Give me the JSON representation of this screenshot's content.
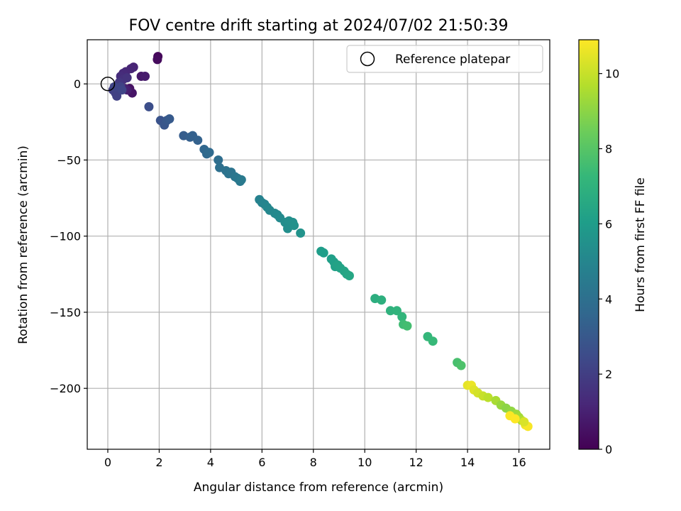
{
  "chart_data": {
    "type": "scatter",
    "title": "FOV centre drift starting at 2024/07/02 21:50:39",
    "xlabel": "Angular distance from reference (arcmin)",
    "ylabel": "Rotation from reference (arcmin)",
    "xlim": [
      -0.8,
      17.2
    ],
    "ylim": [
      -240,
      29
    ],
    "xticks": [
      0,
      2,
      4,
      6,
      8,
      10,
      12,
      14,
      16
    ],
    "yticks": [
      0,
      -50,
      -100,
      -150,
      -200
    ],
    "grid": true,
    "legend": {
      "position": "upper-right",
      "entries": [
        "Reference platepar"
      ]
    },
    "reference_point": {
      "x": 0,
      "y": 0
    },
    "colorbar": {
      "label": "Hours from first FF file",
      "colormap": "viridis",
      "range": [
        0,
        10.9
      ],
      "ticks": [
        0,
        2,
        4,
        6,
        8,
        10
      ]
    },
    "series": [
      {
        "name": "",
        "points": [
          {
            "x": 1.95,
            "y": 18,
            "h": 0.2
          },
          {
            "x": 1.93,
            "y": 16,
            "h": 0.3
          },
          {
            "x": 0.85,
            "y": -3,
            "h": 0.5
          },
          {
            "x": 0.95,
            "y": -6,
            "h": 0.6
          },
          {
            "x": 1.3,
            "y": 5,
            "h": 0.7
          },
          {
            "x": 1.45,
            "y": 5,
            "h": 0.8
          },
          {
            "x": 0.75,
            "y": -4,
            "h": 0.9
          },
          {
            "x": 0.65,
            "y": -3,
            "h": 1.0
          },
          {
            "x": 1.0,
            "y": 11,
            "h": 1.1
          },
          {
            "x": 0.9,
            "y": 10,
            "h": 1.15
          },
          {
            "x": 0.7,
            "y": 8,
            "h": 1.2
          },
          {
            "x": 0.6,
            "y": 7,
            "h": 1.3
          },
          {
            "x": 0.5,
            "y": 5,
            "h": 1.4
          },
          {
            "x": 0.6,
            "y": 3,
            "h": 1.5
          },
          {
            "x": 0.75,
            "y": 4,
            "h": 1.6
          },
          {
            "x": 0.45,
            "y": 1,
            "h": 1.7
          },
          {
            "x": 0.4,
            "y": -1,
            "h": 1.8
          },
          {
            "x": 0.3,
            "y": -3,
            "h": 1.9
          },
          {
            "x": 0.2,
            "y": -4,
            "h": 2.0
          },
          {
            "x": 0.3,
            "y": -6,
            "h": 2.05
          },
          {
            "x": 0.35,
            "y": -8,
            "h": 2.1
          },
          {
            "x": 0.5,
            "y": -2,
            "h": 2.15
          },
          {
            "x": 0.25,
            "y": -2,
            "h": 2.2
          },
          {
            "x": 0.55,
            "y": -4,
            "h": 2.25
          },
          {
            "x": 1.6,
            "y": -15,
            "h": 2.6
          },
          {
            "x": 2.05,
            "y": -24,
            "h": 2.8
          },
          {
            "x": 2.2,
            "y": -27,
            "h": 2.9
          },
          {
            "x": 2.3,
            "y": -24,
            "h": 3.0
          },
          {
            "x": 2.4,
            "y": -23,
            "h": 3.05
          },
          {
            "x": 2.95,
            "y": -34,
            "h": 3.2
          },
          {
            "x": 3.2,
            "y": -35,
            "h": 3.3
          },
          {
            "x": 3.3,
            "y": -34,
            "h": 3.35
          },
          {
            "x": 3.5,
            "y": -37,
            "h": 3.4
          },
          {
            "x": 3.75,
            "y": -43,
            "h": 3.6
          },
          {
            "x": 3.85,
            "y": -46,
            "h": 3.7
          },
          {
            "x": 3.95,
            "y": -45,
            "h": 3.75
          },
          {
            "x": 4.3,
            "y": -50,
            "h": 3.9
          },
          {
            "x": 4.35,
            "y": -55,
            "h": 4.0
          },
          {
            "x": 4.6,
            "y": -57,
            "h": 4.1
          },
          {
            "x": 4.7,
            "y": -59,
            "h": 4.15
          },
          {
            "x": 4.8,
            "y": -58,
            "h": 4.2
          },
          {
            "x": 4.95,
            "y": -61,
            "h": 4.3
          },
          {
            "x": 5.05,
            "y": -62,
            "h": 4.35
          },
          {
            "x": 5.15,
            "y": -64,
            "h": 4.4
          },
          {
            "x": 5.2,
            "y": -63,
            "h": 4.45
          },
          {
            "x": 5.9,
            "y": -76,
            "h": 4.8
          },
          {
            "x": 6.0,
            "y": -78,
            "h": 4.9
          },
          {
            "x": 6.1,
            "y": -79,
            "h": 4.95
          },
          {
            "x": 6.2,
            "y": -81,
            "h": 5.0
          },
          {
            "x": 6.3,
            "y": -83,
            "h": 5.05
          },
          {
            "x": 6.5,
            "y": -85,
            "h": 5.1
          },
          {
            "x": 6.6,
            "y": -86,
            "h": 5.15
          },
          {
            "x": 6.7,
            "y": -88,
            "h": 5.2
          },
          {
            "x": 6.9,
            "y": -91,
            "h": 5.3
          },
          {
            "x": 7.0,
            "y": -95,
            "h": 5.35
          },
          {
            "x": 7.05,
            "y": -90,
            "h": 5.4
          },
          {
            "x": 7.2,
            "y": -91,
            "h": 5.45
          },
          {
            "x": 7.25,
            "y": -93,
            "h": 5.5
          },
          {
            "x": 7.5,
            "y": -98,
            "h": 5.6
          },
          {
            "x": 8.3,
            "y": -110,
            "h": 6.0
          },
          {
            "x": 8.4,
            "y": -111,
            "h": 6.05
          },
          {
            "x": 8.7,
            "y": -115,
            "h": 6.1
          },
          {
            "x": 8.8,
            "y": -117,
            "h": 6.15
          },
          {
            "x": 8.85,
            "y": -120,
            "h": 6.2
          },
          {
            "x": 8.95,
            "y": -119,
            "h": 6.25
          },
          {
            "x": 9.05,
            "y": -121,
            "h": 6.3
          },
          {
            "x": 9.2,
            "y": -123,
            "h": 6.35
          },
          {
            "x": 9.3,
            "y": -125,
            "h": 6.4
          },
          {
            "x": 9.4,
            "y": -126,
            "h": 6.45
          },
          {
            "x": 10.4,
            "y": -141,
            "h": 6.8
          },
          {
            "x": 10.65,
            "y": -142,
            "h": 6.9
          },
          {
            "x": 11.0,
            "y": -149,
            "h": 7.0
          },
          {
            "x": 11.25,
            "y": -149,
            "h": 7.05
          },
          {
            "x": 11.45,
            "y": -153,
            "h": 7.1
          },
          {
            "x": 11.5,
            "y": -158,
            "h": 7.5
          },
          {
            "x": 11.65,
            "y": -159,
            "h": 7.6
          },
          {
            "x": 12.45,
            "y": -166,
            "h": 7.2
          },
          {
            "x": 12.65,
            "y": -169,
            "h": 7.3
          },
          {
            "x": 13.6,
            "y": -183,
            "h": 7.7
          },
          {
            "x": 13.75,
            "y": -185,
            "h": 7.8
          },
          {
            "x": 14.0,
            "y": -198,
            "h": 10.5
          },
          {
            "x": 14.15,
            "y": -198,
            "h": 10.6
          },
          {
            "x": 14.25,
            "y": -201,
            "h": 10.4
          },
          {
            "x": 14.4,
            "y": -203,
            "h": 10.2
          },
          {
            "x": 14.6,
            "y": -205,
            "h": 10.0
          },
          {
            "x": 14.8,
            "y": -206,
            "h": 9.8
          },
          {
            "x": 15.1,
            "y": -208,
            "h": 9.5
          },
          {
            "x": 15.3,
            "y": -211,
            "h": 9.2
          },
          {
            "x": 15.5,
            "y": -213,
            "h": 9.0
          },
          {
            "x": 15.7,
            "y": -215,
            "h": 9.1
          },
          {
            "x": 15.9,
            "y": -217,
            "h": 9.3
          },
          {
            "x": 16.0,
            "y": -219,
            "h": 9.4
          },
          {
            "x": 16.1,
            "y": -221,
            "h": 9.6
          },
          {
            "x": 16.25,
            "y": -224,
            "h": 10.7
          },
          {
            "x": 16.35,
            "y": -225,
            "h": 10.8
          },
          {
            "x": 15.65,
            "y": -218,
            "h": 10.85
          },
          {
            "x": 15.85,
            "y": -220,
            "h": 10.9
          },
          {
            "x": 16.2,
            "y": -222,
            "h": 10.3
          }
        ]
      }
    ]
  }
}
